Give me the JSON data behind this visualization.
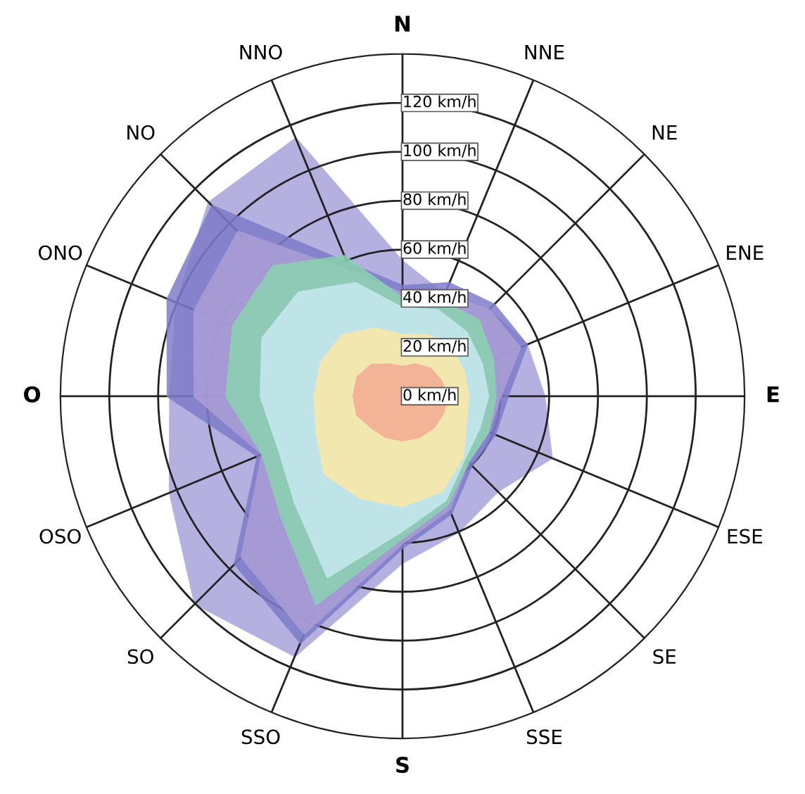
{
  "chart_data": {
    "type": "radar",
    "categories": [
      "N",
      "NNE",
      "NE",
      "ENE",
      "E",
      "ESE",
      "SE",
      "SSE",
      "S",
      "SSO",
      "SO",
      "OSO",
      "O",
      "ONO",
      "NO",
      "NNO"
    ],
    "ylim": [
      0,
      140
    ],
    "yticks": [
      {
        "value": 0,
        "label": "0 km/h"
      },
      {
        "value": 20,
        "label": "20 km/h"
      },
      {
        "value": 40,
        "label": "40 km/h"
      },
      {
        "value": 60,
        "label": "60 km/h"
      },
      {
        "value": 80,
        "label": "80 km/h"
      },
      {
        "value": 100,
        "label": "100 km/h"
      },
      {
        "value": 120,
        "label": "120 km/h"
      }
    ],
    "grid": true,
    "series": [
      {
        "color": "#a7a3da",
        "values": [
          55,
          45,
          50,
          55,
          58,
          66,
          55,
          60,
          68,
          115,
          120,
          103,
          95,
          100,
          112,
          114
        ]
      },
      {
        "color": "#7f7ccb",
        "values": [
          45,
          50,
          53,
          55,
          43,
          41,
          40,
          52,
          62,
          109,
          97,
          64,
          96,
          104,
          110,
          59
        ]
      },
      {
        "color": "#ab9fd6",
        "values": [
          42,
          45,
          50,
          52,
          40,
          38,
          38,
          50,
          60,
          105,
          93,
          62,
          85,
          92,
          95,
          55
        ]
      },
      {
        "color": "#8ad3b0",
        "values": [
          40,
          42,
          44,
          40,
          38,
          38,
          38,
          48,
          58,
          92,
          70,
          62,
          72,
          75,
          75,
          62
        ]
      },
      {
        "color": "#c8e9f1",
        "values": [
          36,
          38,
          37,
          35,
          35,
          34,
          36,
          46,
          55,
          80,
          62,
          55,
          58,
          62,
          60,
          50
        ]
      },
      {
        "color": "#fbe8a6",
        "values": [
          25,
          27,
          28,
          27,
          27,
          28,
          35,
          42,
          45,
          45,
          45,
          38,
          36,
          36,
          35,
          30
        ]
      },
      {
        "color": "#f4ab93",
        "values": [
          12,
          14,
          16,
          17,
          18,
          18,
          18,
          18,
          18,
          18,
          18,
          20,
          20,
          20,
          18,
          14
        ]
      }
    ]
  }
}
